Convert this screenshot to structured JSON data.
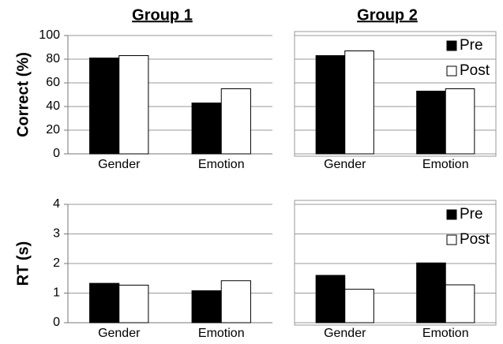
{
  "chart_data": [
    {
      "type": "bar",
      "title": "Group 1",
      "ylabel": "Correct (%)",
      "categories": [
        "Gender",
        "Emotion"
      ],
      "series": [
        {
          "name": "Pre",
          "color": "#000000",
          "values": [
            81,
            43
          ]
        },
        {
          "name": "Post",
          "color": "#ffffff",
          "values": [
            83,
            55
          ]
        }
      ],
      "ylim": [
        0,
        100
      ],
      "yticks": [
        0,
        20,
        40,
        60,
        80,
        100
      ],
      "grid": true,
      "tick_labels": true,
      "frame": false,
      "legend": false
    },
    {
      "type": "bar",
      "title": "Group 2",
      "categories": [
        "Gender",
        "Emotion"
      ],
      "series": [
        {
          "name": "Pre",
          "color": "#000000",
          "values": [
            83,
            53
          ]
        },
        {
          "name": "Post",
          "color": "#ffffff",
          "values": [
            87,
            55
          ]
        }
      ],
      "ylim": [
        0,
        100
      ],
      "yticks": [
        0,
        20,
        40,
        60,
        80,
        100
      ],
      "grid": true,
      "tick_labels": false,
      "frame": true,
      "legend": "upper right"
    },
    {
      "type": "bar",
      "ylabel": "RT (s)",
      "categories": [
        "Gender",
        "Emotion"
      ],
      "series": [
        {
          "name": "Pre",
          "color": "#000000",
          "values": [
            1.33,
            1.08
          ]
        },
        {
          "name": "Post",
          "color": "#ffffff",
          "values": [
            1.27,
            1.42
          ]
        }
      ],
      "ylim": [
        0,
        4
      ],
      "yticks": [
        0,
        1,
        2,
        3,
        4
      ],
      "grid": true,
      "tick_labels": true,
      "frame": false,
      "legend": false
    },
    {
      "type": "bar",
      "categories": [
        "Gender",
        "Emotion"
      ],
      "series": [
        {
          "name": "Pre",
          "color": "#000000",
          "values": [
            1.6,
            2.02
          ]
        },
        {
          "name": "Post",
          "color": "#ffffff",
          "values": [
            1.13,
            1.28
          ]
        }
      ],
      "ylim": [
        0,
        4
      ],
      "yticks": [
        0,
        1,
        2,
        3,
        4
      ],
      "grid": true,
      "tick_labels": false,
      "frame": true,
      "legend": "upper right"
    }
  ]
}
